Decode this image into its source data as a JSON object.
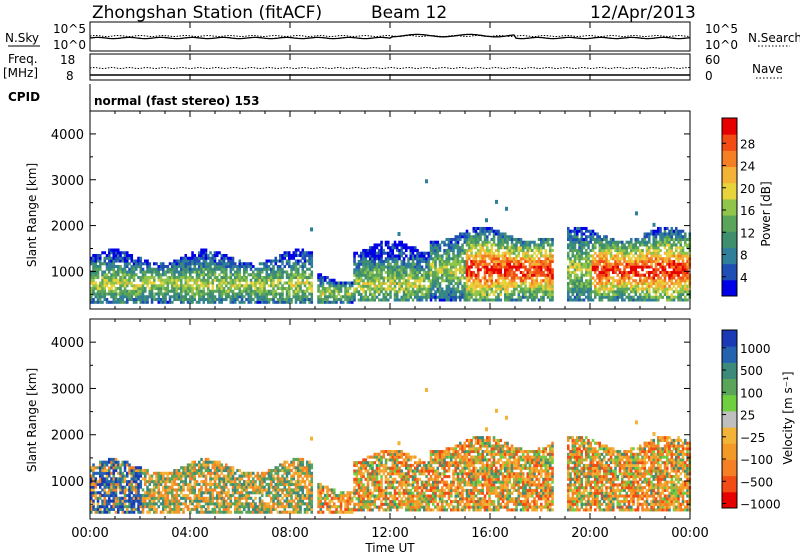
{
  "header": {
    "station": "Zhongshan Station (fitACF)",
    "beam": "Beam 12",
    "date": "12/Apr/2013"
  },
  "top_panels": {
    "nsky_label": "N.Sky",
    "nsearch_label": "N.Search",
    "left_ticks_1": [
      "10^5",
      "10^0"
    ],
    "right_ticks_1": [
      "10^5",
      "10^0"
    ],
    "freq_label_1": "Freq.",
    "freq_label_2": "[MHz]",
    "freq_ticks": [
      "18",
      "8"
    ],
    "nave_label": "Nave",
    "nave_ticks": [
      "60",
      "0"
    ],
    "cpid_label": "CPID",
    "cpid_text": "normal (fast stereo) 153"
  },
  "chart_data": [
    {
      "type": "heatmap",
      "name": "power",
      "ylabel": "Slant Range [km]",
      "xlabel": "",
      "yticks": [
        "4000",
        "3000",
        "2000",
        "1000"
      ],
      "ylim": [
        180,
        4500
      ],
      "xlim": [
        0,
        24
      ],
      "colorbar_label": "Power [dB]",
      "colorbar_ticks": [
        "28",
        "24",
        "20",
        "16",
        "12",
        "8",
        "4"
      ],
      "colorbar_colors": [
        "#0000e6",
        "#1f4fb4",
        "#2f7f9a",
        "#3f8f6f",
        "#5aa55a",
        "#8fc54a",
        "#e8d43a",
        "#f3b336",
        "#f57f24",
        "#f24b14",
        "#e60000"
      ]
    },
    {
      "type": "heatmap",
      "name": "velocity",
      "ylabel": "Slant Range [km]",
      "xlabel": "Time UT",
      "yticks": [
        "4000",
        "3000",
        "2000",
        "1000"
      ],
      "ylim": [
        180,
        4500
      ],
      "xlim": [
        0,
        24
      ],
      "xticks": [
        "00:00",
        "04:00",
        "08:00",
        "12:00",
        "16:00",
        "20:00",
        "00:00"
      ],
      "colorbar_label": "Velocity [m s⁻¹]",
      "colorbar_ticks": [
        "1000",
        "500",
        "100",
        "25",
        "−25",
        "−100",
        "−500",
        "−1000"
      ],
      "colorbar_colors": [
        "#1a3ab5",
        "#2563b0",
        "#3c8a7a",
        "#5aa55a",
        "#6fcf3f",
        "#bfbfbf",
        "#f3b336",
        "#f39a26",
        "#f57f24",
        "#f24b14",
        "#e60000"
      ]
    }
  ]
}
